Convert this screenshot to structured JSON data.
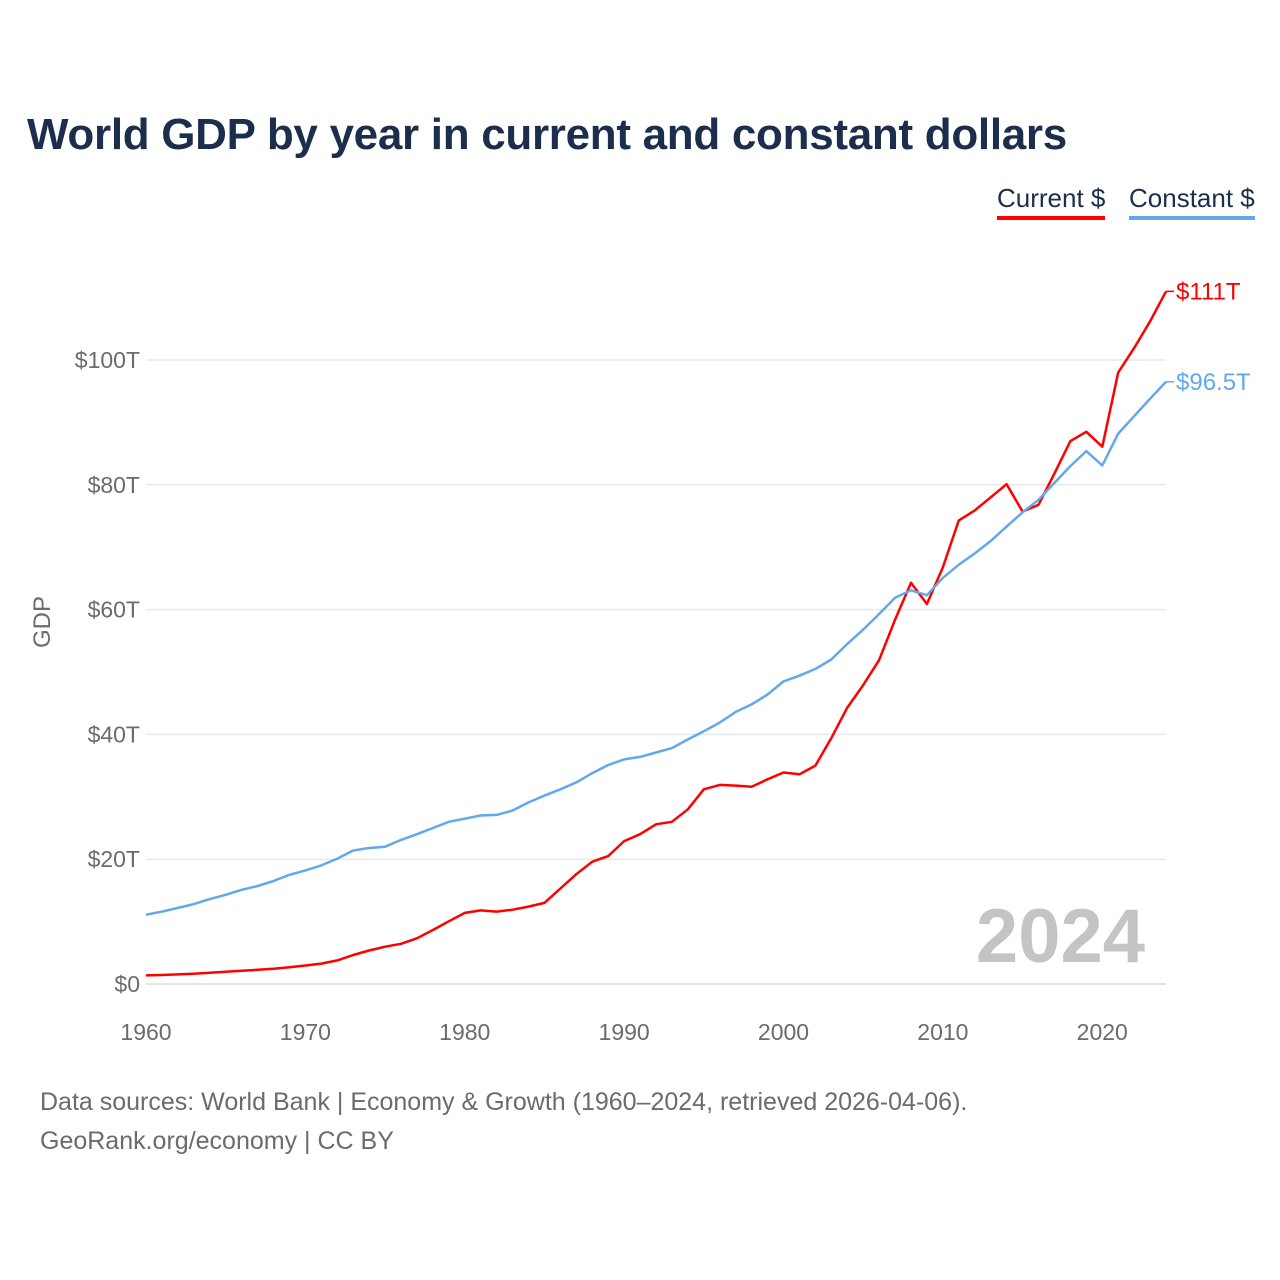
{
  "chart_data": {
    "type": "line",
    "title": "World GDP by year in current and constant dollars",
    "xlabel": "",
    "ylabel": "GDP",
    "xlim": [
      1960,
      2024
    ],
    "ylim": [
      0,
      100
    ],
    "x_ticks": [
      1960,
      1970,
      1980,
      1990,
      2000,
      2010,
      2020
    ],
    "x_tick_labels": [
      "1960",
      "1970",
      "1980",
      "1990",
      "2000",
      "2010",
      "2020"
    ],
    "y_ticks": [
      0,
      20,
      40,
      60,
      80,
      100
    ],
    "y_tick_labels": [
      "$0",
      "$20T",
      "$40T",
      "$60T",
      "$80T",
      "$100T"
    ],
    "grid": true,
    "legend_position": "top-right",
    "year_watermark": "2024",
    "x": [
      1960,
      1961,
      1962,
      1963,
      1964,
      1965,
      1966,
      1967,
      1968,
      1969,
      1970,
      1971,
      1972,
      1973,
      1974,
      1975,
      1976,
      1977,
      1978,
      1979,
      1980,
      1981,
      1982,
      1983,
      1984,
      1985,
      1986,
      1987,
      1988,
      1989,
      1990,
      1991,
      1992,
      1993,
      1994,
      1995,
      1996,
      1997,
      1998,
      1999,
      2000,
      2001,
      2002,
      2003,
      2004,
      2005,
      2006,
      2007,
      2008,
      2009,
      2010,
      2011,
      2012,
      2013,
      2014,
      2015,
      2016,
      2017,
      2018,
      2019,
      2020,
      2021,
      2022,
      2023,
      2024
    ],
    "series": [
      {
        "name": "Current $",
        "color": "#ff0000",
        "end_label": "$111T",
        "values": [
          1.38,
          1.44,
          1.54,
          1.65,
          1.8,
          1.96,
          2.13,
          2.27,
          2.45,
          2.7,
          2.96,
          3.27,
          3.79,
          4.65,
          5.37,
          5.98,
          6.45,
          7.32,
          8.66,
          10.05,
          11.4,
          11.8,
          11.6,
          11.9,
          12.4,
          13.0,
          15.3,
          17.6,
          19.6,
          20.5,
          22.9,
          24.0,
          25.6,
          26.0,
          28.0,
          31.2,
          31.9,
          31.8,
          31.6,
          32.8,
          33.9,
          33.6,
          35.0,
          39.4,
          44.3,
          47.9,
          51.9,
          58.4,
          64.3,
          60.9,
          66.8,
          74.3,
          75.9,
          78.0,
          80.1,
          75.7,
          76.8,
          81.8,
          87.0,
          88.5,
          86.1,
          98.0,
          101.9,
          106.2,
          111.0
        ]
      },
      {
        "name": "Constant $",
        "color": "#62a8ec",
        "end_label": "$96.5T",
        "values": [
          11.1,
          11.6,
          12.2,
          12.8,
          13.6,
          14.3,
          15.1,
          15.7,
          16.5,
          17.5,
          18.2,
          19.0,
          20.1,
          21.4,
          21.8,
          22.0,
          23.1,
          24.0,
          25.0,
          26.0,
          26.5,
          27.0,
          27.1,
          27.8,
          29.1,
          30.2,
          31.2,
          32.3,
          33.8,
          35.1,
          36.0,
          36.4,
          37.1,
          37.8,
          39.2,
          40.5,
          41.9,
          43.6,
          44.8,
          46.4,
          48.5,
          49.4,
          50.5,
          52.0,
          54.5,
          56.8,
          59.3,
          61.9,
          63.1,
          62.3,
          65.1,
          67.2,
          69.0,
          71.0,
          73.3,
          75.6,
          77.6,
          80.3,
          83.0,
          85.4,
          83.1,
          88.2,
          91.0,
          93.8,
          96.5
        ]
      }
    ]
  },
  "footer": {
    "line1": "Data sources: World Bank | Economy & Growth (1960–2024, retrieved 2026-04-06).",
    "line2": "GeoRank.org/economy | CC BY"
  }
}
